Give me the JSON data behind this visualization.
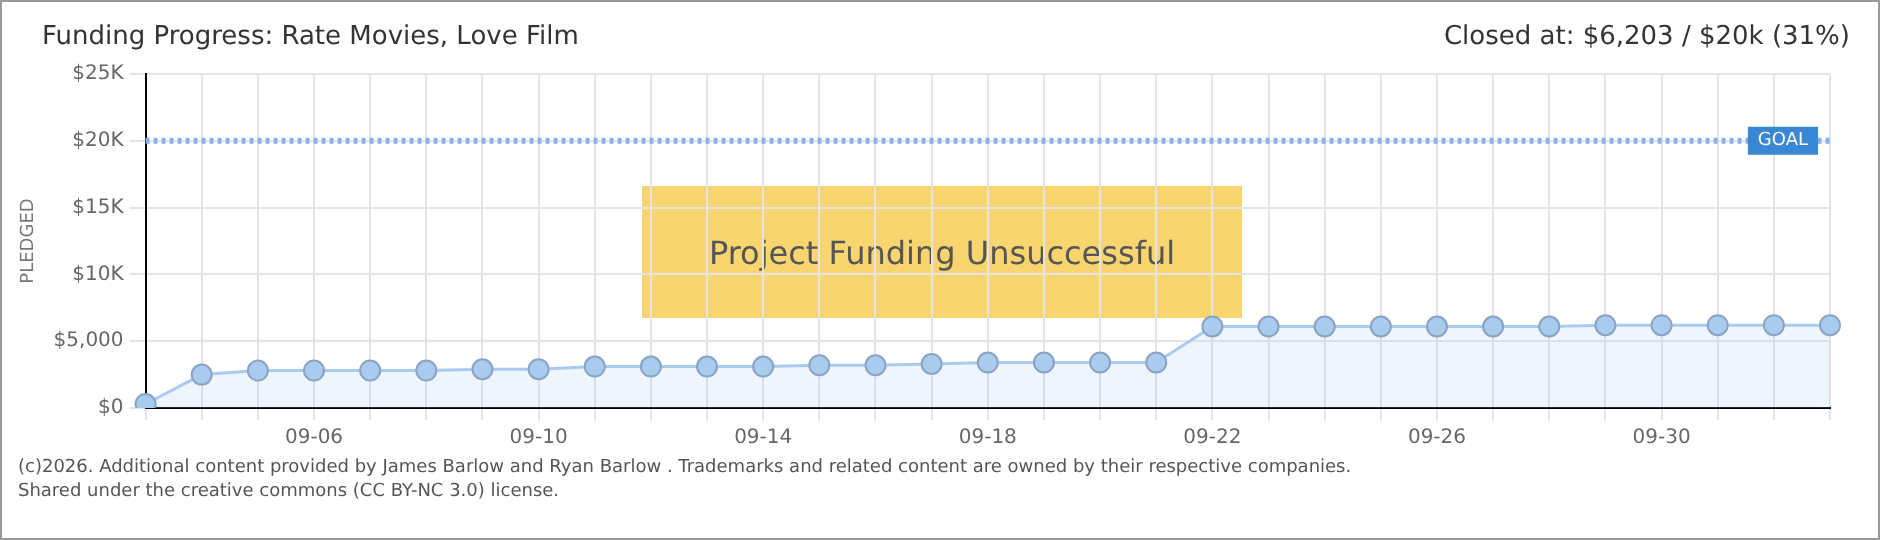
{
  "chart_data": {
    "type": "area",
    "title": "Funding Progress: Rate Movies, Love Film",
    "subtitle": "Closed at: $6,203 / $20k (31%)",
    "ylabel": "PLEDGED",
    "categories": [
      null,
      null,
      null,
      "09-06",
      null,
      null,
      null,
      "09-10",
      null,
      null,
      null,
      "09-14",
      null,
      null,
      null,
      "09-18",
      null,
      null,
      null,
      "09-22",
      null,
      null,
      null,
      "09-26",
      null,
      null,
      null,
      "09-30",
      null,
      null,
      null
    ],
    "series": [
      {
        "color": "#a9cbee",
        "values": [
          300,
          2500,
          2800,
          2800,
          2800,
          2800,
          2900,
          2900,
          3100,
          3100,
          3100,
          3100,
          3200,
          3200,
          3300,
          3400,
          3400,
          3400,
          3400,
          6100,
          6100,
          6100,
          6100,
          6100,
          6100,
          6100,
          6200,
          6200,
          6200,
          6200,
          6200
        ]
      }
    ],
    "ylim": [
      0,
      25000
    ],
    "yticks": [
      {
        "value": 0,
        "label": "$0"
      },
      {
        "value": 5000,
        "label": "$5,000"
      },
      {
        "value": 10000,
        "label": "$10K"
      },
      {
        "value": 15000,
        "label": "$15K"
      },
      {
        "value": 20000,
        "label": "$20K"
      },
      {
        "value": 25000,
        "label": "$25K"
      }
    ],
    "ref_lines": [
      {
        "axis": "y",
        "value": 20000,
        "label": "GOAL",
        "color": "#88b2e0",
        "line_style": "dotted"
      }
    ],
    "annotations": [
      "Project Funding Unsuccessful",
      "(c)2026. Additional content provided by James Barlow and Ryan Barlow . Trademarks and related content are owned by their respective companies.",
      "Shared under the creative commons (CC BY-NC 3.0) license."
    ],
    "grid": true,
    "marker": "circle",
    "legend": false
  }
}
